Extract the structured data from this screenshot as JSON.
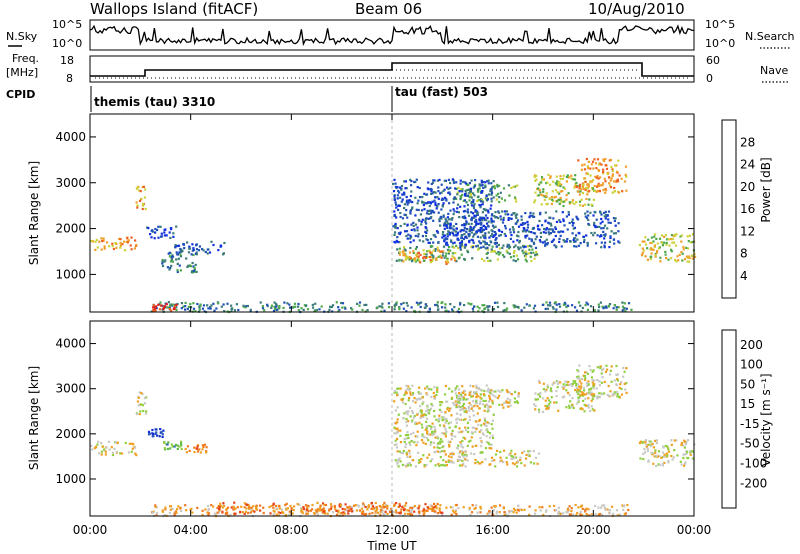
{
  "header": {
    "station": "Wallops Island (fitACF)",
    "beam": "Beam 06",
    "date": "10/Aug/2010"
  },
  "panel_labels": {
    "nsky": "N.Sky",
    "nsearch": "N.Search",
    "freq": "Freq.",
    "freq_unit": "[MHz]",
    "nave": "Nave",
    "cpid": "CPID",
    "nsky_top": "10^5",
    "nsky_bottom": "10^0",
    "freq_top": "18",
    "freq_bottom": "8",
    "nave_top": "60",
    "nave_bottom": "0"
  },
  "cpid_segments": [
    {
      "label": "themis (tau) 3310",
      "start_hour": 0
    },
    {
      "label": "tau (fast) 503",
      "start_hour": 12
    }
  ],
  "chart_data": [
    {
      "type": "heatmap",
      "name": "power",
      "ylabel": "Slant Range [km]",
      "yticks": [
        1000,
        2000,
        3000,
        4000
      ],
      "ylim": [
        180,
        4500
      ],
      "xlim": [
        0,
        24
      ],
      "colorbar": {
        "label": "Power [dB]",
        "ticks": [
          "4",
          "8",
          "12",
          "16",
          "20",
          "24",
          "28"
        ],
        "colors": [
          "#1030e0",
          "#2050b8",
          "#3a7a78",
          "#4fa84a",
          "#cdd23a",
          "#f0a02a",
          "#ef6020",
          "#e81818"
        ]
      },
      "regions": [
        {
          "t0": 0.0,
          "t1": 1.8,
          "r0": 1550,
          "r1": 1850,
          "level": 5
        },
        {
          "t0": 1.8,
          "t1": 2.2,
          "r0": 2450,
          "r1": 2950,
          "level": 5
        },
        {
          "t0": 2.2,
          "t1": 3.4,
          "r0": 1800,
          "r1": 2100,
          "level": 1
        },
        {
          "t0": 2.8,
          "t1": 4.2,
          "r0": 1050,
          "r1": 1500,
          "level": 2
        },
        {
          "t0": 3.3,
          "t1": 5.3,
          "r0": 1450,
          "r1": 1750,
          "level": 1
        },
        {
          "t0": 2.4,
          "t1": 21.5,
          "r0": 200,
          "r1": 420,
          "level": 2
        },
        {
          "t0": 2.4,
          "t1": 3.4,
          "r0": 230,
          "r1": 380,
          "level": 7
        },
        {
          "t0": 12.1,
          "t1": 17.8,
          "r0": 1300,
          "r1": 1650,
          "level": 3
        },
        {
          "t0": 12.2,
          "t1": 14.5,
          "r0": 1250,
          "r1": 1550,
          "level": 5
        },
        {
          "t0": 14.5,
          "t1": 17.0,
          "r0": 2600,
          "r1": 3000,
          "level": 3
        },
        {
          "t0": 17.6,
          "t1": 20.0,
          "r0": 2500,
          "r1": 3200,
          "level": 4
        },
        {
          "t0": 19.3,
          "t1": 21.3,
          "r0": 2800,
          "r1": 3550,
          "level": 5
        },
        {
          "t0": 21.8,
          "t1": 24.0,
          "r0": 1300,
          "r1": 1900,
          "level": 4
        },
        {
          "t0": 12.0,
          "t1": 16.0,
          "r0": 1700,
          "r1": 3100,
          "level": 1
        },
        {
          "t0": 14.0,
          "t1": 21.0,
          "r0": 1600,
          "r1": 2400,
          "level": 1
        }
      ]
    },
    {
      "type": "heatmap",
      "name": "velocity",
      "ylabel": "Slant Range [km]",
      "yticks": [
        1000,
        2000,
        3000,
        4000
      ],
      "ylim": [
        180,
        4500
      ],
      "xlim": [
        0,
        24
      ],
      "xticks": [
        "00:00",
        "04:00",
        "08:00",
        "12:00",
        "16:00",
        "20:00",
        "00:00"
      ],
      "xlabel": "Time UT",
      "colorbar": {
        "label": "Velocity [m s⁻¹]",
        "ticks": [
          "200",
          "100",
          "50",
          "15",
          "-15",
          "-50",
          "-100",
          "-200"
        ],
        "colors": [
          "#1030d0",
          "#2c5fb8",
          "#5fb84a",
          "#90d040",
          "#c8c8c4",
          "#f0a020",
          "#ef7a20",
          "#e84018",
          "#e01010"
        ]
      },
      "regions": [
        {
          "t0": 0.0,
          "t1": 1.8,
          "r0": 1550,
          "r1": 1850,
          "level": 4
        },
        {
          "t0": 1.8,
          "t1": 2.2,
          "r0": 2450,
          "r1": 2950,
          "level": 4
        },
        {
          "t0": 2.3,
          "t1": 2.9,
          "r0": 1950,
          "r1": 2150,
          "level": 0
        },
        {
          "t0": 2.9,
          "t1": 3.7,
          "r0": 1650,
          "r1": 1850,
          "level": 2
        },
        {
          "t0": 3.7,
          "t1": 4.6,
          "r0": 1600,
          "r1": 1800,
          "level": 6
        },
        {
          "t0": 2.4,
          "t1": 21.5,
          "r0": 200,
          "r1": 450,
          "level": 5
        },
        {
          "t0": 5.0,
          "t1": 14.0,
          "r0": 250,
          "r1": 500,
          "level": 6
        },
        {
          "t0": 12.1,
          "t1": 17.8,
          "r0": 1300,
          "r1": 1650,
          "level": 4
        },
        {
          "t0": 14.5,
          "t1": 17.0,
          "r0": 2600,
          "r1": 3000,
          "level": 4
        },
        {
          "t0": 17.6,
          "t1": 20.0,
          "r0": 2500,
          "r1": 3200,
          "level": 4
        },
        {
          "t0": 19.3,
          "t1": 21.3,
          "r0": 2800,
          "r1": 3550,
          "level": 4
        },
        {
          "t0": 21.8,
          "t1": 24.0,
          "r0": 1300,
          "r1": 1900,
          "level": 4
        },
        {
          "t0": 12.0,
          "t1": 16.0,
          "r0": 1700,
          "r1": 3100,
          "level": 4
        }
      ]
    }
  ]
}
